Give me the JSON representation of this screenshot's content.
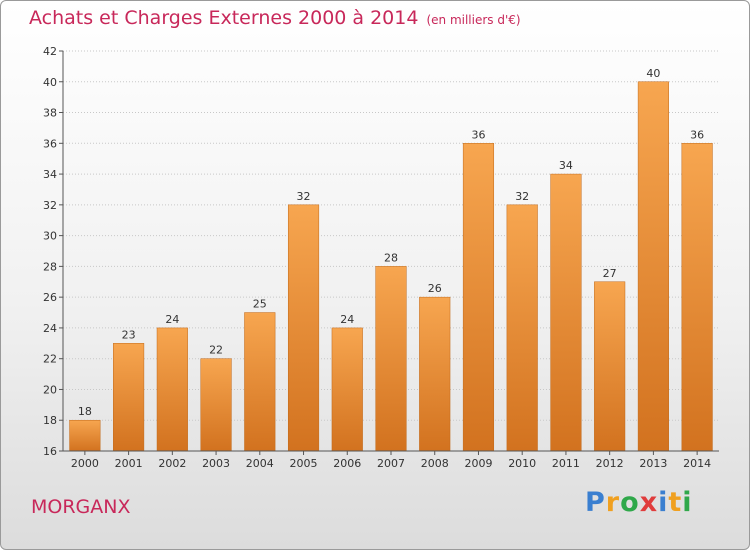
{
  "title": "Achats et Charges Externes 2000 à 2014",
  "unit": "(en milliers d'€)",
  "town": "MORGANX",
  "logo": {
    "text": "Proxiti",
    "letters": [
      "P",
      "r",
      "o",
      "x",
      "i",
      "t",
      "i"
    ],
    "colors": [
      "#3a7fd0",
      "#f0a020",
      "#2fa84a",
      "#e03c3c",
      "#3a7fd0",
      "#f0a020",
      "#2fa84a"
    ]
  },
  "chart_data": {
    "type": "bar",
    "title": "Achats et Charges Externes 2000 à 2014",
    "subtitle": "(en milliers d'€)",
    "xlabel": "",
    "ylabel": "",
    "categories": [
      "2000",
      "2001",
      "2002",
      "2003",
      "2004",
      "2005",
      "2006",
      "2007",
      "2008",
      "2009",
      "2010",
      "2011",
      "2012",
      "2013",
      "2014"
    ],
    "values": [
      18,
      23,
      24,
      22,
      25,
      32,
      24,
      28,
      26,
      36,
      32,
      34,
      27,
      40,
      36
    ],
    "ylim": [
      16,
      42
    ],
    "yticks": [
      16,
      18,
      20,
      22,
      24,
      26,
      28,
      30,
      32,
      34,
      36,
      38,
      40,
      42
    ],
    "grid": true,
    "bar_color_top": "#f7a650",
    "bar_color_bottom": "#d2721f"
  }
}
